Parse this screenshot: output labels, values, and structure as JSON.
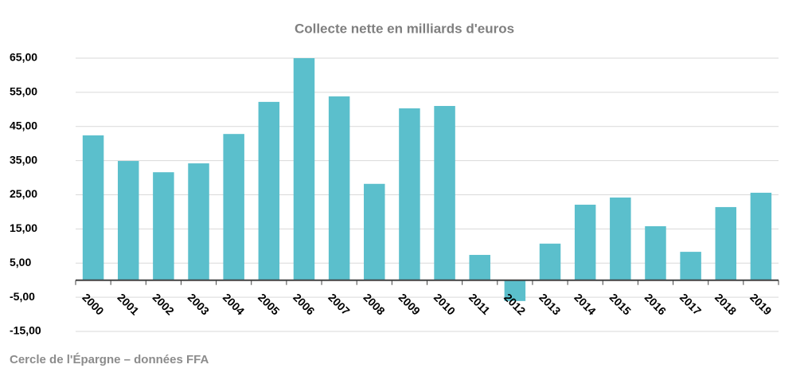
{
  "chart_data": {
    "type": "bar",
    "title": "Collecte nette en milliards d'euros",
    "source": "Cercle de l'Épargne – données FFA",
    "categories": [
      "2000",
      "2001",
      "2002",
      "2003",
      "2004",
      "2005",
      "2006",
      "2007",
      "2008",
      "2009",
      "2010",
      "2011",
      "2012",
      "2013",
      "2014",
      "2015",
      "2016",
      "2017",
      "2018",
      "2019"
    ],
    "values": [
      42.4,
      34.9,
      31.6,
      34.2,
      42.8,
      52.2,
      65.0,
      53.8,
      28.2,
      50.3,
      51.0,
      7.4,
      -6.1,
      10.7,
      22.1,
      24.2,
      15.8,
      8.3,
      21.4,
      25.6
    ],
    "color": "#5bbfcc",
    "ylim": [
      -15,
      65
    ],
    "yticks": [
      {
        "value": -15,
        "label": "-15,00"
      },
      {
        "value": -5,
        "label": "-5,00"
      },
      {
        "value": 5,
        "label": "5,00"
      },
      {
        "value": 15,
        "label": "15,00"
      },
      {
        "value": 25,
        "label": "25,00"
      },
      {
        "value": 35,
        "label": "35,00"
      },
      {
        "value": 45,
        "label": "45,00"
      },
      {
        "value": 55,
        "label": "55,00"
      },
      {
        "value": 65,
        "label": "65,00"
      }
    ],
    "grid": true
  }
}
